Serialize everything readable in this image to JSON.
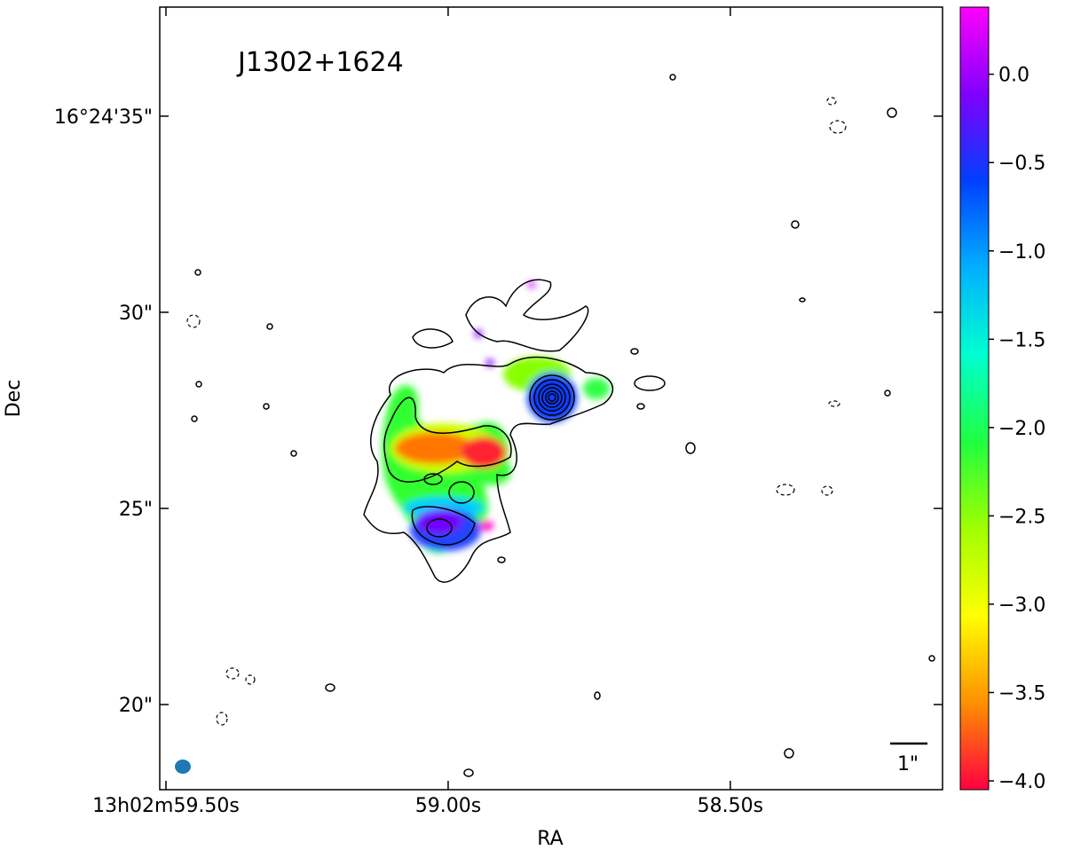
{
  "chart_data": {
    "type": "image",
    "title": "J1302+1624",
    "x_label": "RA",
    "y_label": "Dec",
    "xlim": [
      59.511,
      58.124
    ],
    "xticks": [
      {
        "value": 59.5,
        "label": "13h02m59.50s"
      },
      {
        "value": 59.0,
        "label": "59.00s"
      },
      {
        "value": 58.5,
        "label": "58.50s"
      }
    ],
    "ylim": [
      17.83,
      37.78
    ],
    "yticks": [
      {
        "value": 20,
        "label": "20\""
      },
      {
        "value": 25,
        "label": "25\""
      },
      {
        "value": 30,
        "label": "30\""
      },
      {
        "value": 35,
        "label": "16°24'35\""
      }
    ],
    "colorbar": {
      "lim": [
        -4.05,
        0.38
      ],
      "ticks": [
        {
          "value": 0,
          "label": "0.0"
        },
        {
          "value": -0.5,
          "label": "−0.5"
        },
        {
          "value": -1,
          "label": "−1.0"
        },
        {
          "value": -1.5,
          "label": "−1.5"
        },
        {
          "value": -2,
          "label": "−2.0"
        },
        {
          "value": -2.5,
          "label": "−2.5"
        },
        {
          "value": -3,
          "label": "−3.0"
        },
        {
          "value": -3.5,
          "label": "−3.5"
        },
        {
          "value": -4,
          "label": "−4.0"
        }
      ],
      "colors": [
        "#ff00ff",
        "#8000ff",
        "#0040ff",
        "#00b0ff",
        "#00ffd0",
        "#20ff40",
        "#a0ff00",
        "#ffff00",
        "#ff9000",
        "#ff0040"
      ]
    },
    "beam_color": "#1f77b4",
    "scale_bar_label": "1\""
  }
}
